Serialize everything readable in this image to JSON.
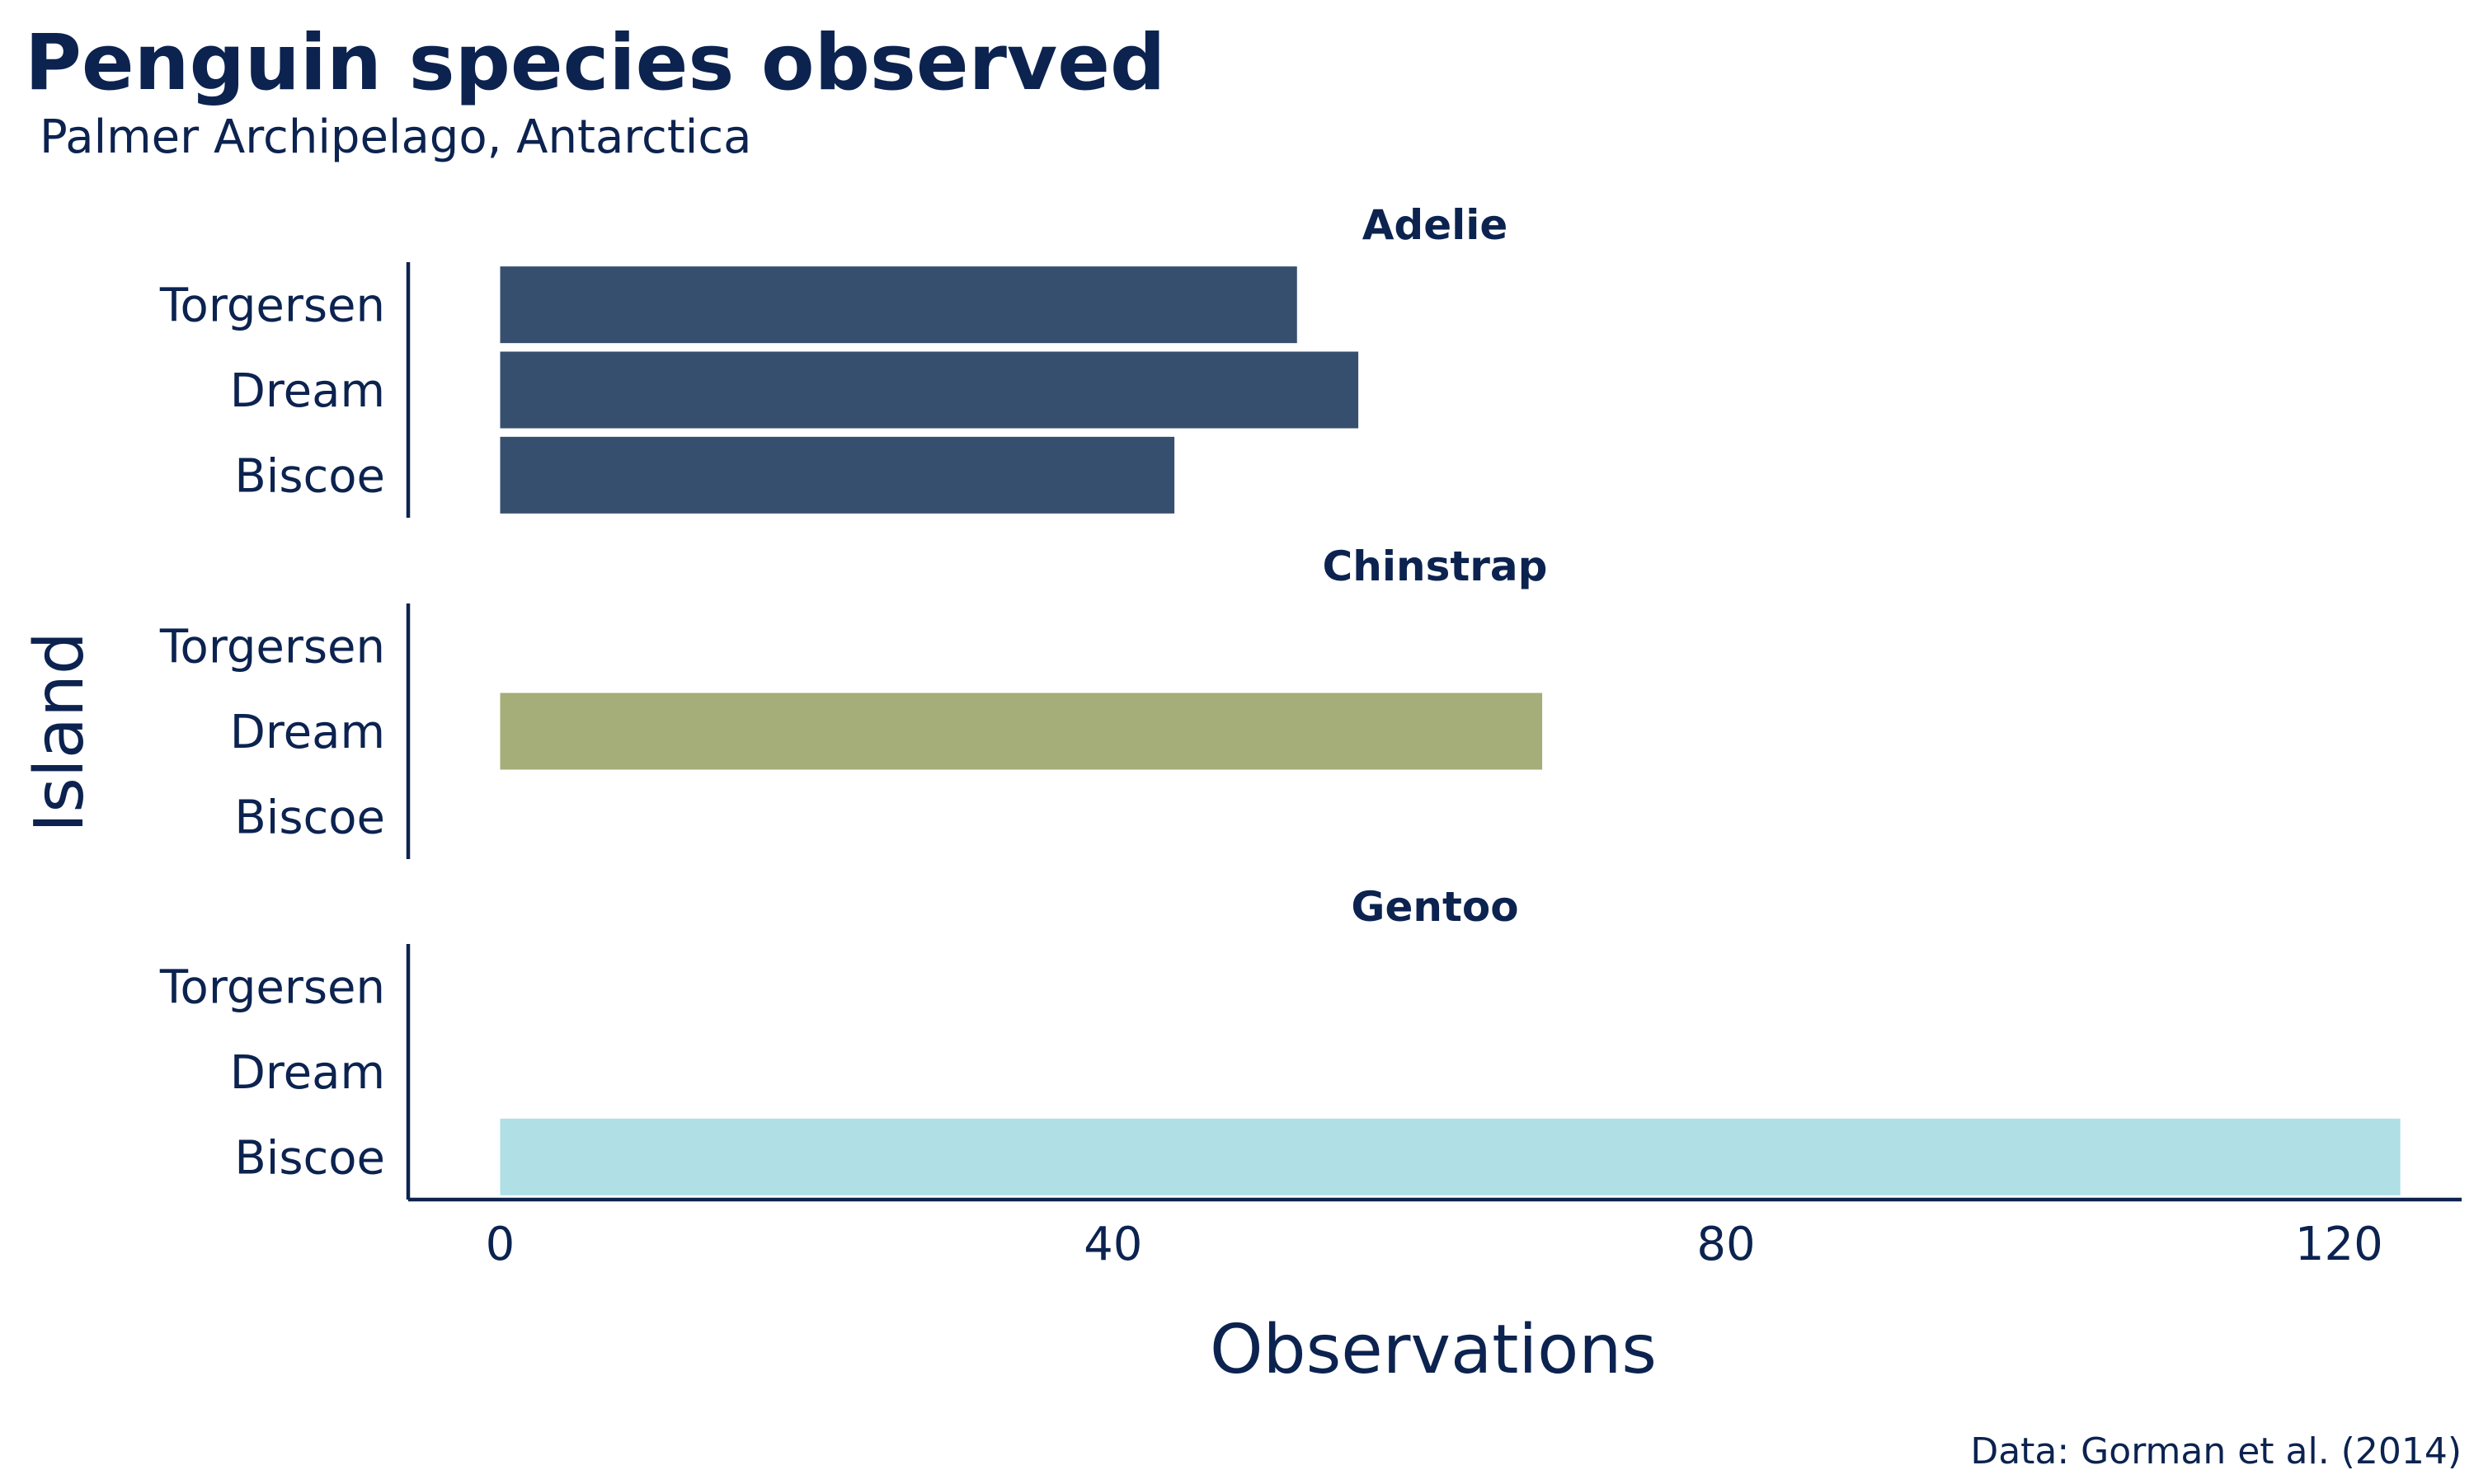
{
  "chart_data": {
    "type": "bar",
    "orientation": "horizontal",
    "title": "Penguin species observed",
    "subtitle": "Palmer Archipelago, Antarctica",
    "caption": "Data: Gorman et al. (2014)",
    "xlabel": "Observations",
    "ylabel": "Island",
    "xlim": [
      -6,
      128
    ],
    "xticks": [
      0,
      40,
      80,
      120
    ],
    "categories": [
      "Torgersen",
      "Dream",
      "Biscoe"
    ],
    "grid": false,
    "legend": "none",
    "facets": [
      {
        "name": "Adelie",
        "color": "#364f6e",
        "values": [
          52,
          56,
          44
        ]
      },
      {
        "name": "Chinstrap",
        "color": "#a5ad78",
        "values": [
          0,
          68,
          0
        ]
      },
      {
        "name": "Gentoo",
        "color": "#b0dfe5",
        "values": [
          0,
          0,
          124
        ]
      }
    ]
  }
}
